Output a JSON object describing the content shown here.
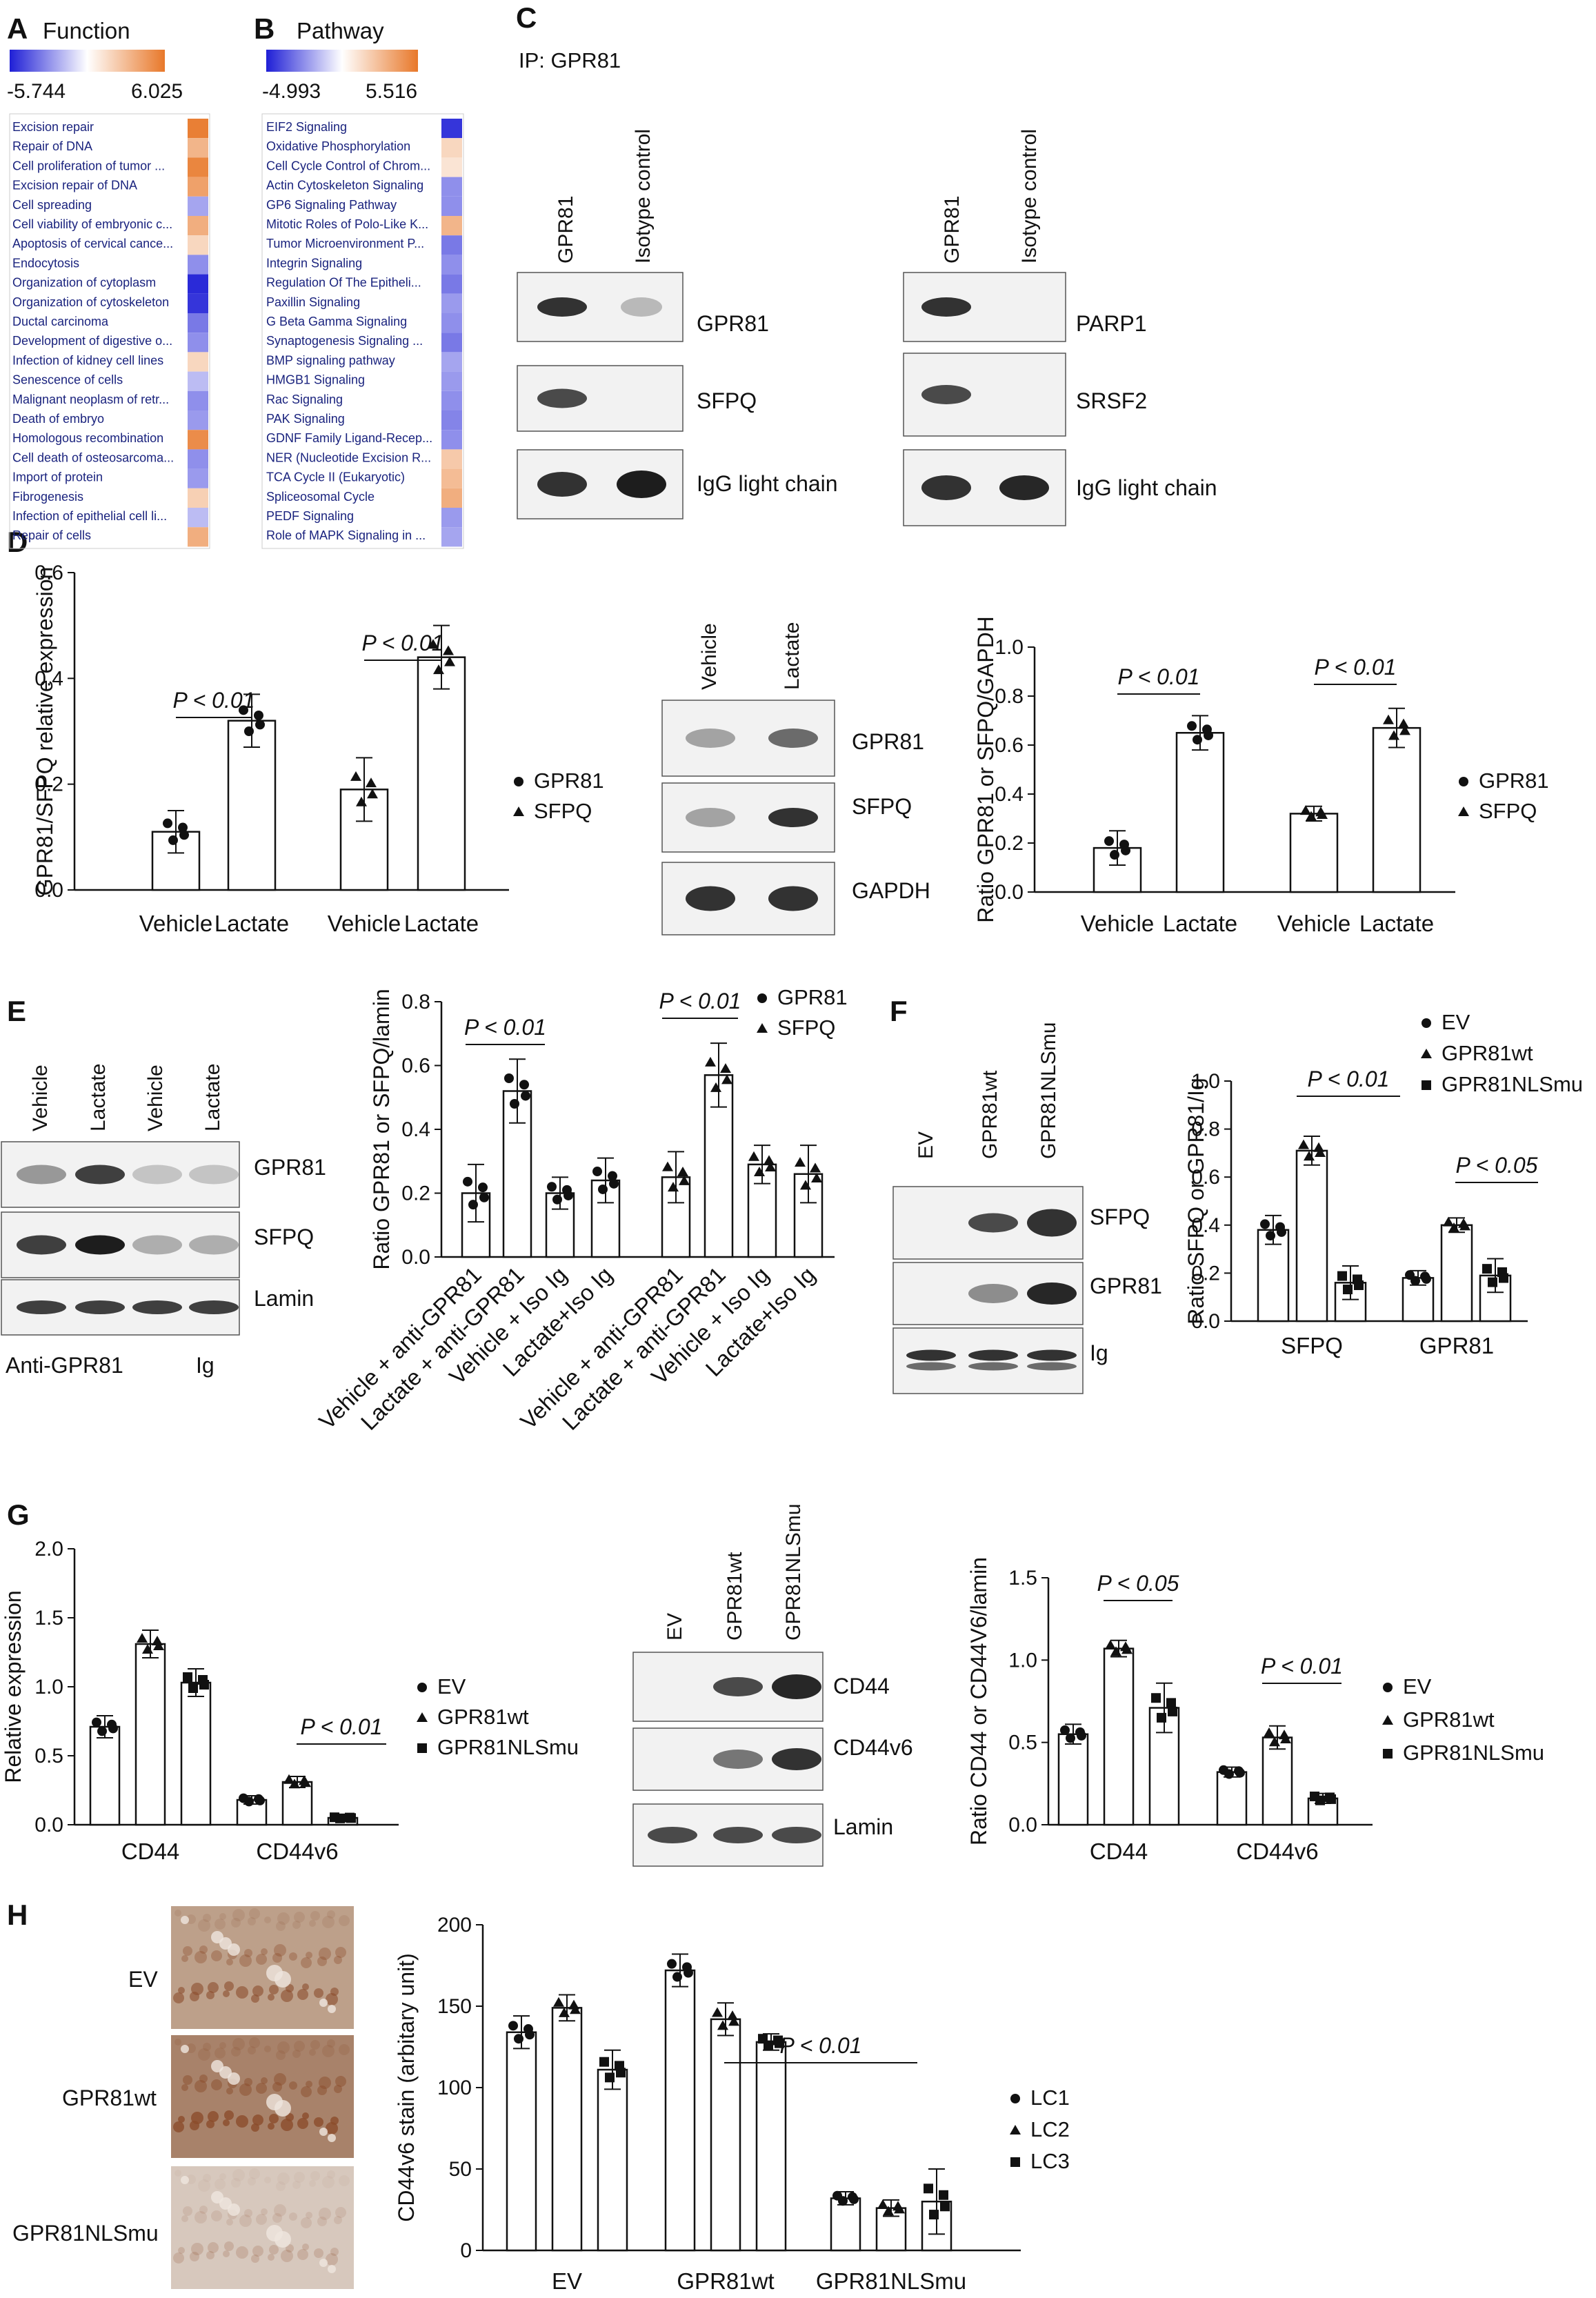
{
  "panels": {
    "A": {
      "letter": "A",
      "title": "Function",
      "scale_min": "-5.744",
      "scale_max": "6.025",
      "items": [
        {
          "label": "Excision repair",
          "v": 0.95
        },
        {
          "label": "Repair of DNA",
          "v": 0.55
        },
        {
          "label": "Cell proliferation of tumor ...",
          "v": 0.9
        },
        {
          "label": "Excision repair of DNA",
          "v": 0.7
        },
        {
          "label": "Cell spreading",
          "v": -0.4
        },
        {
          "label": "Cell viability of embryonic c...",
          "v": 0.6
        },
        {
          "label": "Apoptosis of cervical cance...",
          "v": 0.3
        },
        {
          "label": "Endocytosis",
          "v": -0.5
        },
        {
          "label": "Organization of cytoplasm",
          "v": -0.95
        },
        {
          "label": "Organization of cytoskeleton",
          "v": -0.9
        },
        {
          "label": "Ductal carcinoma",
          "v": -0.6
        },
        {
          "label": "Development of digestive o...",
          "v": -0.5
        },
        {
          "label": "Infection of kidney cell lines",
          "v": 0.3
        },
        {
          "label": "Senescence of cells",
          "v": -0.3
        },
        {
          "label": "Malignant neoplasm of retr...",
          "v": -0.5
        },
        {
          "label": "Death of embryo",
          "v": -0.45
        },
        {
          "label": "Homologous recombination",
          "v": 0.85
        },
        {
          "label": "Cell death of osteosarcoma...",
          "v": -0.5
        },
        {
          "label": "Import of protein",
          "v": -0.45
        },
        {
          "label": "Fibrogenesis",
          "v": 0.35
        },
        {
          "label": "Infection of epithelial cell li...",
          "v": -0.3
        },
        {
          "label": "Repair of cells",
          "v": 0.6
        }
      ]
    },
    "B": {
      "letter": "B",
      "title": "Pathway",
      "scale_min": "-4.993",
      "scale_max": "5.516",
      "items": [
        {
          "label": "EIF2 Signaling",
          "v": -0.9
        },
        {
          "label": "Oxidative Phosphorylation",
          "v": 0.3
        },
        {
          "label": "Cell Cycle Control of Chrom...",
          "v": 0.2
        },
        {
          "label": "Actin Cytoskeleton Signaling",
          "v": -0.5
        },
        {
          "label": "GP6 Signaling Pathway",
          "v": -0.5
        },
        {
          "label": "Mitotic Roles of Polo-Like K...",
          "v": 0.55
        },
        {
          "label": "Tumor Microenvironment P...",
          "v": -0.6
        },
        {
          "label": "Integrin Signaling",
          "v": -0.5
        },
        {
          "label": "Regulation Of The Epitheli...",
          "v": -0.6
        },
        {
          "label": "Paxillin Signaling",
          "v": -0.45
        },
        {
          "label": "G Beta Gamma Signaling",
          "v": -0.5
        },
        {
          "label": "Synaptogenesis Signaling ...",
          "v": -0.6
        },
        {
          "label": "BMP signaling pathway",
          "v": -0.4
        },
        {
          "label": "HMGB1 Signaling",
          "v": -0.45
        },
        {
          "label": "Rac Signaling",
          "v": -0.5
        },
        {
          "label": "PAK Signaling",
          "v": -0.55
        },
        {
          "label": "GDNF Family Ligand-Recep...",
          "v": -0.5
        },
        {
          "label": "NER (Nucleotide Excision R...",
          "v": 0.4
        },
        {
          "label": "TCA Cycle II (Eukaryotic)",
          "v": 0.5
        },
        {
          "label": "Spliceosomal Cycle",
          "v": 0.6
        },
        {
          "label": "PEDF Signaling",
          "v": -0.45
        },
        {
          "label": "Role of MAPK Signaling in ...",
          "v": -0.4
        }
      ]
    },
    "C": {
      "letter": "C",
      "ip": "IP: GPR81",
      "columns": [
        "GPR81",
        "Isotype control"
      ],
      "left_bands": [
        "GPR81",
        "SFPQ",
        "IgG light chain"
      ],
      "right_bands": [
        "PARP1",
        "SRSF2",
        "IgG light chain"
      ]
    },
    "D": {
      "letter": "D",
      "blot_columns": [
        "Vehicle",
        "Lactate"
      ],
      "blot_bands": [
        "GPR81",
        "SFPQ",
        "GAPDH"
      ]
    },
    "E": {
      "letter": "E",
      "blot_columns": [
        "Vehicle",
        "Lactate",
        "Vehicle",
        "Lactate"
      ],
      "blot_bands": [
        "GPR81",
        "SFPQ",
        "Lamin"
      ],
      "blot_footer_left": "Anti-GPR81",
      "blot_footer_right": "Ig"
    },
    "F": {
      "letter": "F",
      "blot_columns": [
        "EV",
        "GPR81wt",
        "GPR81NLSmu"
      ],
      "blot_bands": [
        "SFPQ",
        "GPR81",
        "Ig"
      ]
    },
    "G": {
      "letter": "G",
      "blot_columns": [
        "EV",
        "GPR81wt",
        "GPR81NLSmu"
      ],
      "blot_bands": [
        "CD44",
        "CD44v6",
        "Lamin"
      ]
    },
    "H": {
      "letter": "H",
      "image_labels": [
        "EV",
        "GPR81wt",
        "GPR81NLSmu"
      ]
    }
  },
  "chart_data": [
    {
      "id": "D1",
      "type": "bar",
      "categories": [
        "Vehicle",
        "Lactate",
        "Vehicle",
        "Lactate"
      ],
      "values": [
        0.11,
        0.32,
        0.19,
        0.44
      ],
      "errors": [
        0.04,
        0.05,
        0.06,
        0.06
      ],
      "groups": [
        "GPR81",
        "GPR81",
        "SFPQ",
        "SFPQ"
      ],
      "ylabel": "GPR81/SFPQ relative expression",
      "ylim": [
        0,
        0.6
      ],
      "yticks": [
        "0.0",
        "0.2",
        "0.4",
        "0.6"
      ],
      "annotations": [
        "P < 0.01",
        "P < 0.01"
      ],
      "legend": [
        "GPR81",
        "SFPQ"
      ]
    },
    {
      "id": "D2",
      "type": "bar",
      "categories": [
        "Vehicle",
        "Lactate",
        "Vehicle",
        "Lactate"
      ],
      "values": [
        0.18,
        0.65,
        0.32,
        0.67
      ],
      "errors": [
        0.07,
        0.07,
        0.03,
        0.08
      ],
      "groups": [
        "GPR81",
        "GPR81",
        "SFPQ",
        "SFPQ"
      ],
      "ylabel": "Ratio GPR81 or SFPQ/GAPDH",
      "ylim": [
        0,
        1.0
      ],
      "yticks": [
        "0.0",
        "0.2",
        "0.4",
        "0.6",
        "0.8",
        "1.0"
      ],
      "annotations": [
        "P < 0.01",
        "P < 0.01"
      ],
      "legend": [
        "GPR81",
        "SFPQ"
      ]
    },
    {
      "id": "E1",
      "type": "bar",
      "categories": [
        "Vehicle + anti-GPR81",
        "Lactate + anti-GPR81",
        "Vehicle + Iso Ig",
        "Lactate+Iso Ig",
        "Vehicle + anti-GPR81",
        "Lactate + anti-GPR81",
        "Vehicle + Iso Ig",
        "Lactate+Iso Ig"
      ],
      "values": [
        0.2,
        0.52,
        0.2,
        0.24,
        0.25,
        0.57,
        0.29,
        0.26
      ],
      "errors": [
        0.09,
        0.1,
        0.05,
        0.07,
        0.08,
        0.1,
        0.06,
        0.09
      ],
      "groups": [
        "GPR81",
        "GPR81",
        "GPR81",
        "GPR81",
        "SFPQ",
        "SFPQ",
        "SFPQ",
        "SFPQ"
      ],
      "ylabel": "Ratio GPR81 or SFPQ/lamin",
      "ylim": [
        0,
        0.8
      ],
      "yticks": [
        "0.0",
        "0.2",
        "0.4",
        "0.6",
        "0.8"
      ],
      "annotations": [
        "P < 0.01",
        "P < 0.01"
      ],
      "legend": [
        "GPR81",
        "SFPQ"
      ]
    },
    {
      "id": "F1",
      "type": "bar",
      "categories": [
        "SFPQ",
        "GPR81"
      ],
      "series": [
        {
          "name": "EV",
          "values": [
            0.38,
            0.18
          ],
          "errors": [
            0.06,
            0.03
          ]
        },
        {
          "name": "GPR81wt",
          "values": [
            0.71,
            0.4
          ],
          "errors": [
            0.06,
            0.03
          ]
        },
        {
          "name": "GPR81NLSmu",
          "values": [
            0.16,
            0.19
          ],
          "errors": [
            0.07,
            0.07
          ]
        }
      ],
      "ylabel": "Ratio SFPQ or GPR81/Ig",
      "ylim": [
        0,
        1.0
      ],
      "yticks": [
        "0.0",
        "0.2",
        "0.4",
        "0.6",
        "0.8",
        "1.0"
      ],
      "annotations": [
        "P < 0.01",
        "P < 0.05"
      ]
    },
    {
      "id": "G1",
      "type": "bar",
      "categories": [
        "CD44",
        "CD44v6"
      ],
      "series": [
        {
          "name": "EV",
          "values": [
            0.71,
            0.18
          ],
          "errors": [
            0.08,
            0.03
          ]
        },
        {
          "name": "GPR81wt",
          "values": [
            1.31,
            0.31
          ],
          "errors": [
            0.1,
            0.04
          ]
        },
        {
          "name": "GPR81NLSmu",
          "values": [
            1.03,
            0.05
          ],
          "errors": [
            0.1,
            0.01
          ]
        }
      ],
      "ylabel": "Relative expression",
      "ylim": [
        0,
        2.0
      ],
      "yticks": [
        "0.0",
        "0.5",
        "1.0",
        "1.5",
        "2.0"
      ],
      "annotations": [
        "P < 0.01"
      ]
    },
    {
      "id": "G2",
      "type": "bar",
      "categories": [
        "CD44",
        "CD44v6"
      ],
      "series": [
        {
          "name": "EV",
          "values": [
            0.55,
            0.32
          ],
          "errors": [
            0.06,
            0.03
          ]
        },
        {
          "name": "GPR81wt",
          "values": [
            1.07,
            0.53
          ],
          "errors": [
            0.05,
            0.07
          ]
        },
        {
          "name": "GPR81NLSmu",
          "values": [
            0.71,
            0.16
          ],
          "errors": [
            0.15,
            0.03
          ]
        }
      ],
      "ylabel": "Ratio CD44 or CD44V6/lamin",
      "ylim": [
        0,
        1.5
      ],
      "yticks": [
        "0.0",
        "0.5",
        "1.0",
        "1.5"
      ],
      "annotations": [
        "P < 0.05",
        "P < 0.01"
      ]
    },
    {
      "id": "H1",
      "type": "bar",
      "categories": [
        "EV",
        "GPR81wt",
        "GPR81NLSmu"
      ],
      "series": [
        {
          "name": "LC1",
          "values": [
            134,
            172,
            32
          ],
          "errors": [
            10,
            10,
            4
          ]
        },
        {
          "name": "LC2",
          "values": [
            149,
            142,
            26
          ],
          "errors": [
            8,
            10,
            5
          ]
        },
        {
          "name": "LC3",
          "values": [
            111,
            128,
            30
          ],
          "errors": [
            12,
            5,
            20
          ]
        }
      ],
      "ylabel": "CD44v6 stain (arbitary unit)",
      "ylim": [
        0,
        200
      ],
      "yticks": [
        "0",
        "50",
        "100",
        "150",
        "200"
      ],
      "annotations": [
        "P < 0.01"
      ]
    }
  ]
}
